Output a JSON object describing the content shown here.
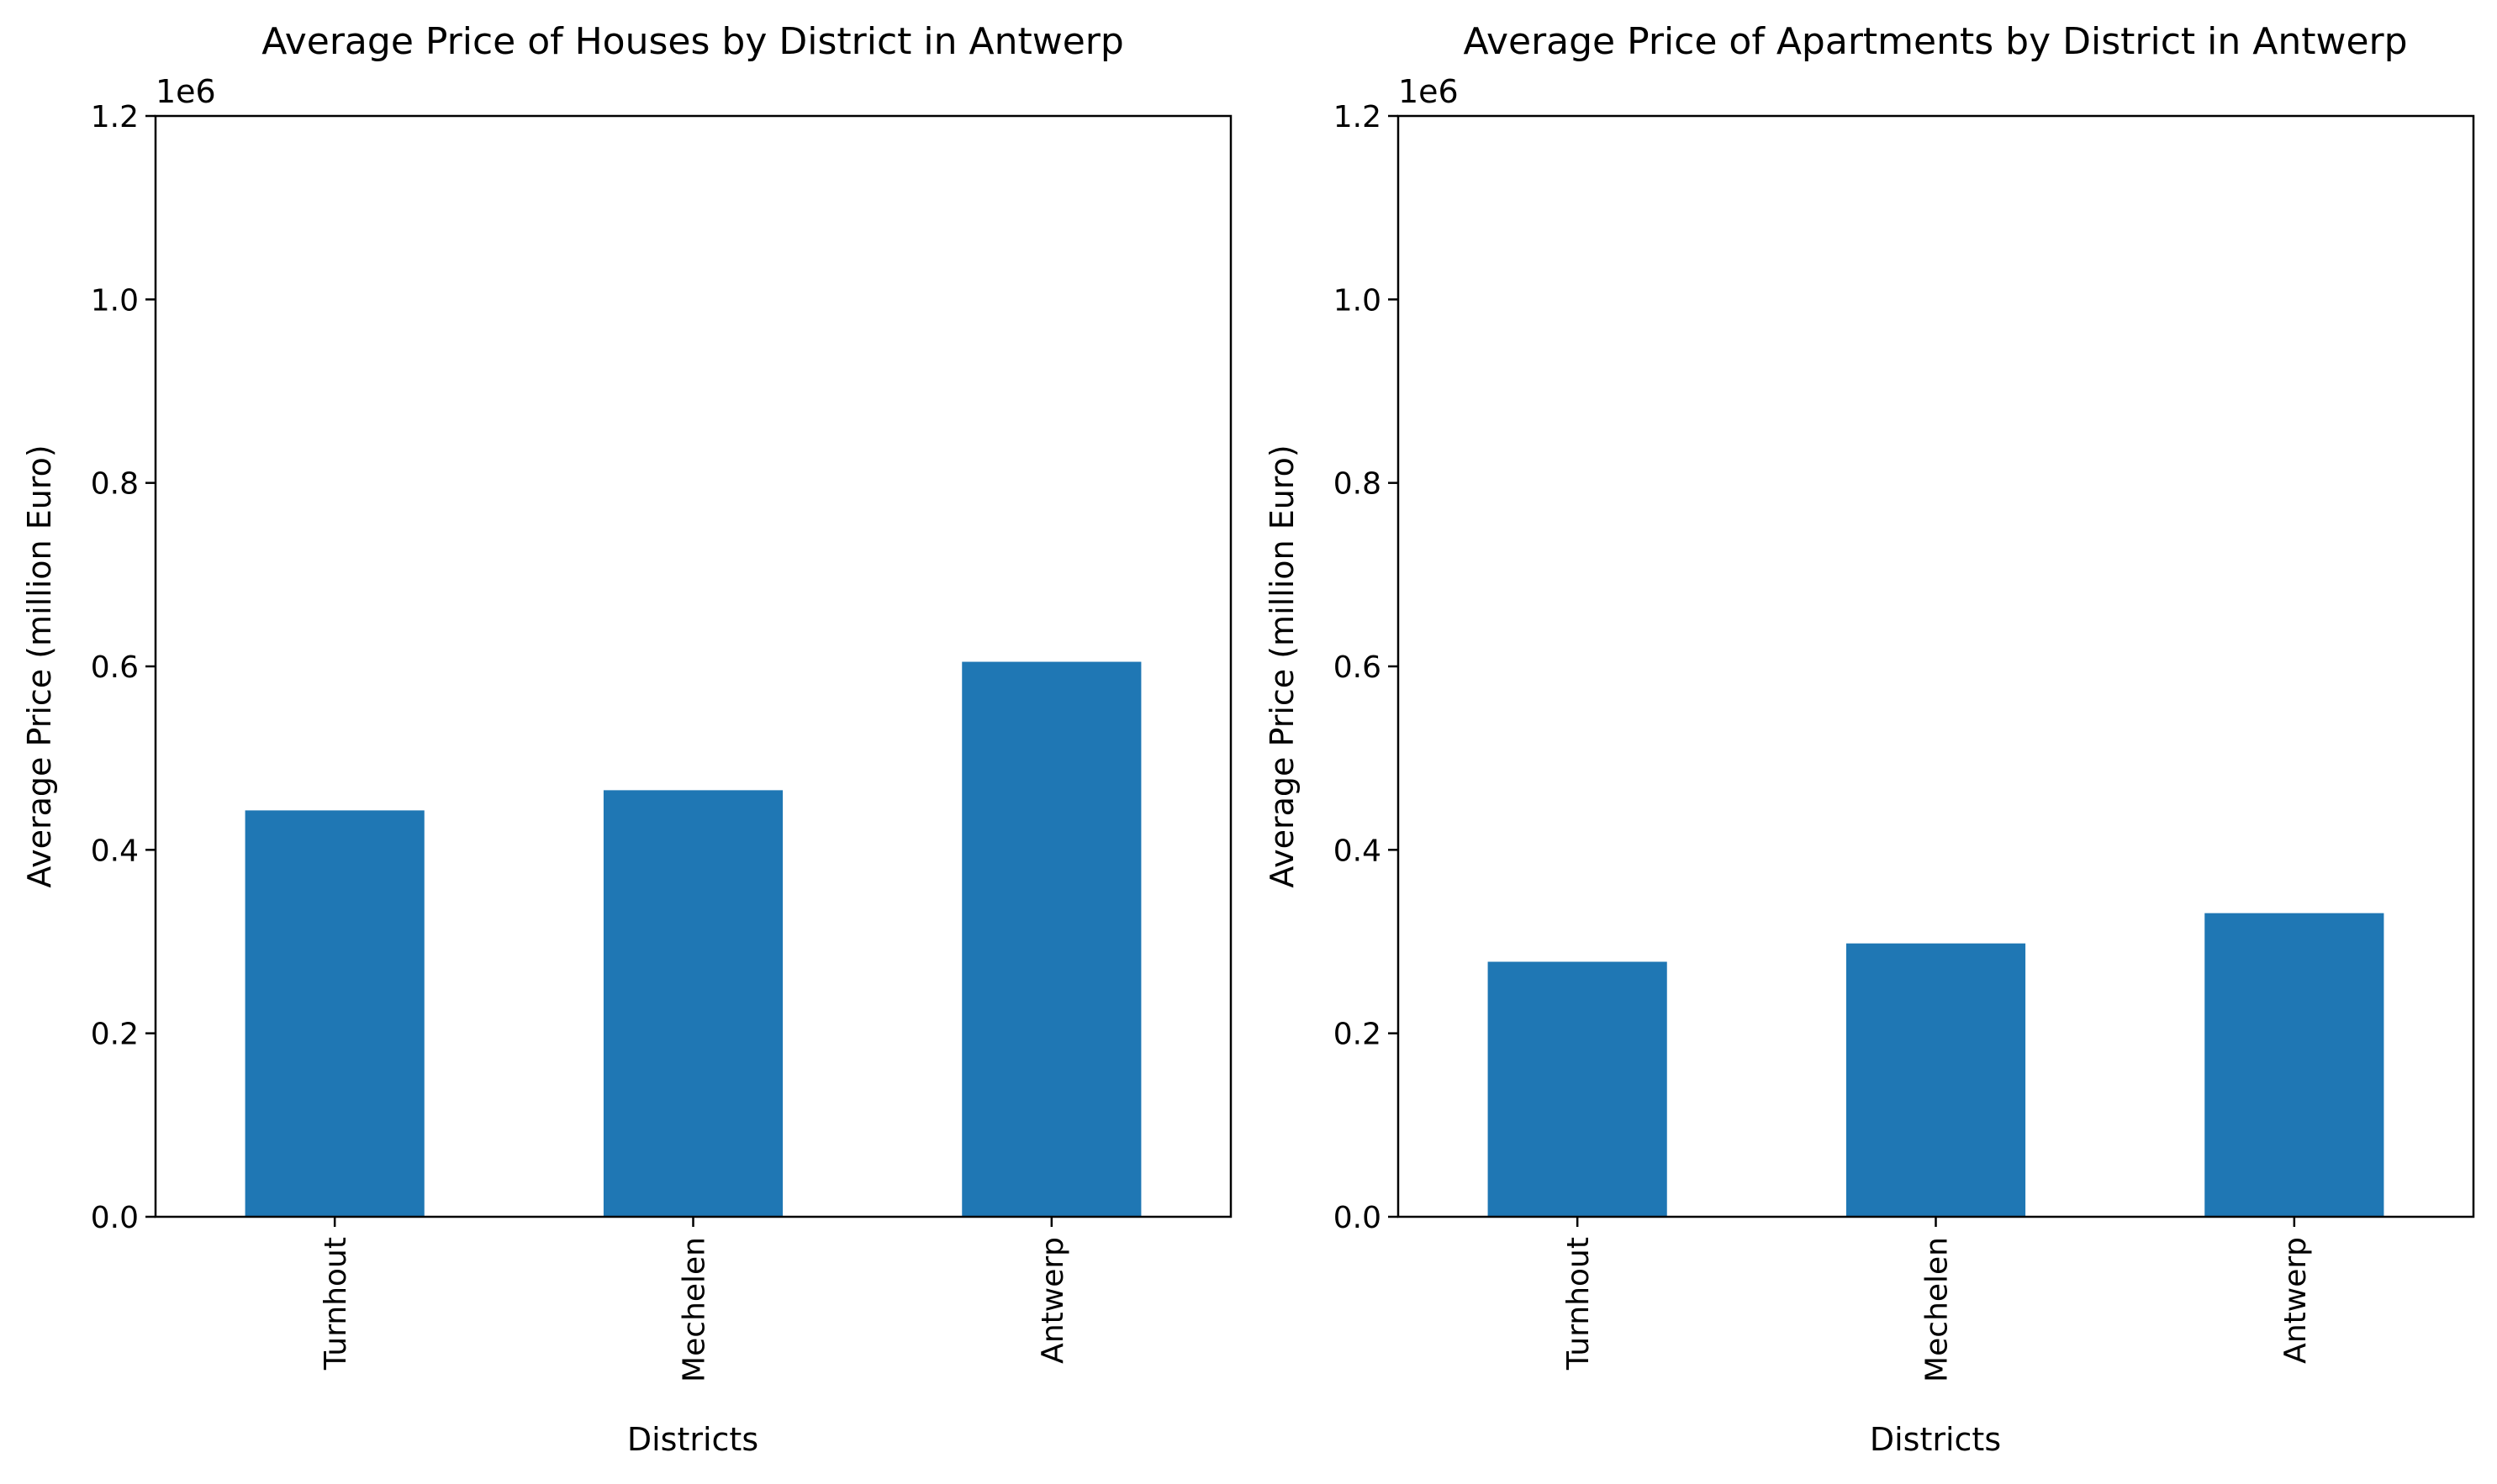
{
  "chart_data": [
    {
      "type": "bar",
      "title": "Average Price of Houses by District in Antwerp",
      "xlabel": "Districts",
      "ylabel": "Average Price (million Euro)",
      "categories": [
        "Turnhout",
        "Mechelen",
        "Antwerp"
      ],
      "values": [
        443000,
        465000,
        605000
      ],
      "ylim": [
        0,
        1200000
      ],
      "yticks": [
        0,
        200000,
        400000,
        600000,
        800000,
        1000000,
        1200000
      ],
      "ytick_labels": [
        "0.0",
        "0.2",
        "0.4",
        "0.6",
        "0.8",
        "1.0",
        "1.2"
      ],
      "y_offset_label": "1e6",
      "bar_color": "#1f77b4",
      "grid": false
    },
    {
      "type": "bar",
      "title": "Average Price of Apartments by District in Antwerp",
      "xlabel": "Districts",
      "ylabel": "Average Price (million Euro)",
      "categories": [
        "Turnhout",
        "Mechelen",
        "Antwerp"
      ],
      "values": [
        278000,
        298000,
        331000
      ],
      "ylim": [
        0,
        1200000
      ],
      "yticks": [
        0,
        200000,
        400000,
        600000,
        800000,
        1000000,
        1200000
      ],
      "ytick_labels": [
        "0.0",
        "0.2",
        "0.4",
        "0.6",
        "0.8",
        "1.0",
        "1.2"
      ],
      "y_offset_label": "1e6",
      "bar_color": "#1f77b4",
      "grid": false
    }
  ]
}
